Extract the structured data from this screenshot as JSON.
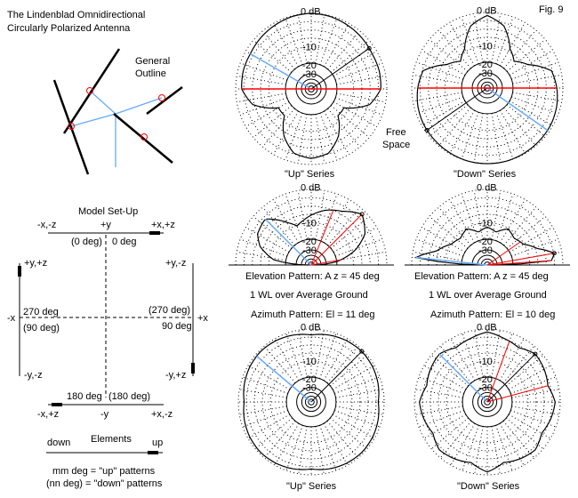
{
  "title_line1": "The Lindenblad Omnidirectional",
  "title_line2": "Circularly Polarized Antenna",
  "fig_label": "Fig. 9",
  "outline_label_1": "General",
  "outline_label_2": "Outline",
  "free_space_1": "Free",
  "free_space_2": "Space",
  "setup": {
    "title": "Model Set-Up",
    "top_left": "-x,-z",
    "top_mid": "+y",
    "top_right": "+x,+z",
    "zero_down": "(0 deg)",
    "zero_up": "0 deg",
    "left_top": "+y,+z",
    "right_top": "+y,-z",
    "neg_x": "-x",
    "pos_x": "+x",
    "deg270_up": "270 deg",
    "deg90_down": "(90 deg)",
    "deg270_down": "(270 deg)",
    "deg90_up": "90 deg",
    "left_bottom": "-y,-z",
    "right_bottom": "-y,+z",
    "deg180_up": "180 deg",
    "deg180_down": "(180 deg)",
    "bot_left": "-x,+z",
    "bot_mid": "-y",
    "bot_right": "+x,-z",
    "elements": "Elements",
    "down": "down",
    "up": "up",
    "note1": "mm deg = \"up\" patterns",
    "note2": "(nn deg) = \"down\" patterns"
  },
  "captions": {
    "up_series": "\"Up\" Series",
    "down_series": "\"Down\" Series",
    "elev_left": "Elevation Pattern: A z = 45 deg",
    "elev_right": "Elevation Pattern: A z = 45 deg",
    "ground_left": "1 WL over Average Ground",
    "ground_right": "1 WL over Average Ground",
    "azim_left": "Azimuth Pattern: El = 11 deg",
    "azim_right": "Azimuth Pattern: El = 10 deg",
    "up_series_2": "\"Up\" Series",
    "down_series_2": "\"Down\" Series"
  },
  "ring_labels": [
    "0 dB",
    "-10",
    "-20",
    "-30"
  ],
  "colors": {
    "pattern": "#000000",
    "red": "#ff0000",
    "blue": "#66aaff"
  },
  "chart_data": [
    {
      "type": "polar",
      "name": "free-space-azimuth-up",
      "angles_deg": [
        0,
        15,
        30,
        45,
        60,
        75,
        90,
        105,
        120,
        135,
        150,
        165,
        180
      ],
      "relative_gain": [
        1.0,
        0.99,
        0.97,
        0.95,
        0.93,
        0.93,
        0.92,
        0.8,
        0.5,
        0.5,
        0.72,
        0.88,
        0.92
      ],
      "symmetric": true,
      "marker_angle": 55,
      "blue_angle": 300
    },
    {
      "type": "polar",
      "name": "free-space-azimuth-down",
      "angles_deg": [
        0,
        15,
        30,
        45,
        60,
        75,
        90,
        105,
        120,
        135,
        150,
        165,
        180
      ],
      "relative_gain": [
        0.96,
        0.85,
        0.6,
        0.5,
        0.62,
        0.88,
        0.92,
        0.95,
        0.97,
        0.98,
        0.99,
        1.0,
        1.0
      ],
      "symmetric": true,
      "marker_angle": 235,
      "blue_angle": 125
    },
    {
      "type": "polar-elevation",
      "name": "elevation-up",
      "angles_deg": [
        -90,
        -82,
        -70,
        -60,
        -45,
        -30,
        -20,
        -10,
        0,
        15,
        30,
        45,
        60,
        72,
        82,
        90
      ],
      "relative_gain": [
        0.05,
        0.5,
        0.72,
        0.82,
        0.86,
        0.65,
        0.55,
        0.6,
        0.66,
        0.75,
        0.82,
        0.95,
        0.82,
        0.6,
        0.35,
        0.05
      ]
    },
    {
      "type": "polar-elevation",
      "name": "elevation-down",
      "angles_deg": [
        -90,
        -84,
        -75,
        -60,
        -45,
        -30,
        -15,
        0,
        15,
        30,
        45,
        60,
        72,
        80,
        86,
        90
      ],
      "relative_gain": [
        0.05,
        0.95,
        0.7,
        0.55,
        0.5,
        0.55,
        0.45,
        0.5,
        0.45,
        0.55,
        0.5,
        0.55,
        0.7,
        0.9,
        0.85,
        0.05
      ]
    },
    {
      "type": "polar",
      "name": "azimuth-up-el11",
      "angles_deg": [
        0,
        15,
        30,
        45,
        60,
        75,
        90,
        105,
        120,
        135,
        150,
        165,
        180
      ],
      "relative_gain": [
        0.92,
        0.95,
        0.97,
        0.98,
        0.97,
        0.95,
        0.92,
        0.95,
        0.97,
        0.98,
        0.97,
        0.95,
        0.92
      ],
      "symmetric": true,
      "marker_angle": 45,
      "blue_angle": 310
    },
    {
      "type": "polar",
      "name": "azimuth-down-el10",
      "angles_deg": [
        0,
        15,
        30,
        45,
        60,
        75,
        90,
        105,
        120,
        135,
        150,
        165,
        180
      ],
      "relative_gain": [
        0.96,
        0.9,
        0.86,
        0.93,
        0.9,
        0.86,
        0.93,
        0.9,
        0.86,
        0.93,
        0.9,
        0.86,
        0.96
      ],
      "symmetric": true,
      "marker_angle": 45,
      "blue_angle": 315
    }
  ]
}
